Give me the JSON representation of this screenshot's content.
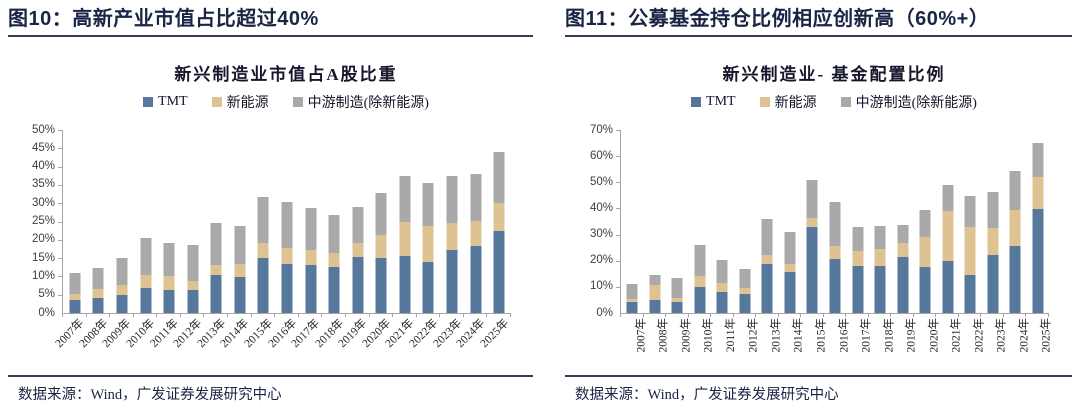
{
  "palette": {
    "tmt_blue": "#55789c",
    "new_energy_tan": "#dfc291",
    "midstream_gray": "#a9a9a9",
    "title_navy": "#1a2444",
    "divider": "#3a3a55",
    "axis_gray": "#a6a6a6"
  },
  "figures": [
    {
      "header": "图10：高新产业市值占比超过40%",
      "chart_title": "新兴制造业市值占A股比重",
      "source": "数据来源：Wind，广发证券发展研究中心",
      "chart_data": {
        "type": "bar",
        "stacked": true,
        "title": "新兴制造业市值占A股比重",
        "xlabel": "",
        "ylabel": "",
        "ylim": [
          0,
          50
        ],
        "ytick_step": 5,
        "ytick_format": "percent",
        "grid": false,
        "legend_position": "top-center",
        "categories": [
          "2007年",
          "2008年",
          "2009年",
          "2010年",
          "2011年",
          "2012年",
          "2013年",
          "2014年",
          "2015年",
          "2016年",
          "2017年",
          "2018年",
          "2019年",
          "2020年",
          "2021年",
          "2022年",
          "2023年",
          "2024年",
          "2025年"
        ],
        "series": [
          {
            "name": "TMT",
            "color": "#55789c",
            "values": [
              3.5,
              4.0,
              4.8,
              6.7,
              6.4,
              6.4,
              10.3,
              9.9,
              15.1,
              13.5,
              13.0,
              12.6,
              15.3,
              14.9,
              15.5,
              14.0,
              17.3,
              18.3,
              22.4
            ]
          },
          {
            "name": "新能源",
            "color": "#dfc291",
            "values": [
              1.7,
              2.5,
              2.8,
              3.8,
              3.6,
              2.3,
              2.7,
              3.4,
              4.1,
              4.4,
              4.2,
              3.8,
              3.7,
              6.4,
              9.4,
              9.7,
              7.2,
              6.8,
              7.7
            ]
          },
          {
            "name": "中游制造(除新能源)",
            "color": "#a9a9a9",
            "values": [
              5.7,
              5.7,
              7.3,
              10.1,
              9.2,
              10.0,
              11.6,
              10.4,
              12.4,
              12.5,
              11.4,
              10.5,
              10.0,
              11.5,
              12.5,
              11.9,
              13.0,
              13.0,
              14.0
            ]
          }
        ]
      }
    },
    {
      "header": "图11：公募基金持仓比例相应创新高（60%+）",
      "chart_title": "新兴制造业- 基金配置比例",
      "source": "数据来源：Wind，广发证券发展研究中心",
      "chart_data": {
        "type": "bar",
        "stacked": true,
        "title": "新兴制造业- 基金配置比例",
        "xlabel": "",
        "ylabel": "",
        "ylim": [
          0,
          70
        ],
        "ytick_step": 10,
        "ytick_format": "percent",
        "grid": false,
        "legend_position": "top-center",
        "categories": [
          "2007年",
          "2008年",
          "2009年",
          "2010年",
          "2011年",
          "2012年",
          "2013年",
          "2014年",
          "2015年",
          "2016年",
          "2017年",
          "2018年",
          "2019年",
          "2020年",
          "2021年",
          "2022年",
          "2023年",
          "2024年",
          "2025年"
        ],
        "series": [
          {
            "name": "TMT",
            "color": "#55789c",
            "values": [
              4.2,
              4.8,
              4.3,
              9.9,
              8.2,
              7.3,
              18.7,
              15.7,
              32.8,
              20.8,
              18.0,
              18.0,
              21.5,
              17.6,
              19.9,
              14.4,
              22.1,
              25.7,
              39.7
            ]
          },
          {
            "name": "新能源",
            "color": "#dfc291",
            "values": [
              1.0,
              6.0,
              1.6,
              4.4,
              3.3,
              2.1,
              3.6,
              2.9,
              3.7,
              5.0,
              5.8,
              6.3,
              5.3,
              11.5,
              19.2,
              18.6,
              10.5,
              13.6,
              12.2
            ]
          },
          {
            "name": "中游制造(除新能源)",
            "color": "#a9a9a9",
            "values": [
              6.0,
              3.9,
              7.4,
              11.7,
              8.9,
              7.6,
              13.6,
              12.4,
              14.3,
              16.7,
              9.0,
              8.9,
              7.0,
              10.2,
              9.8,
              11.7,
              13.8,
              15.0,
              13.2
            ]
          }
        ]
      }
    }
  ]
}
